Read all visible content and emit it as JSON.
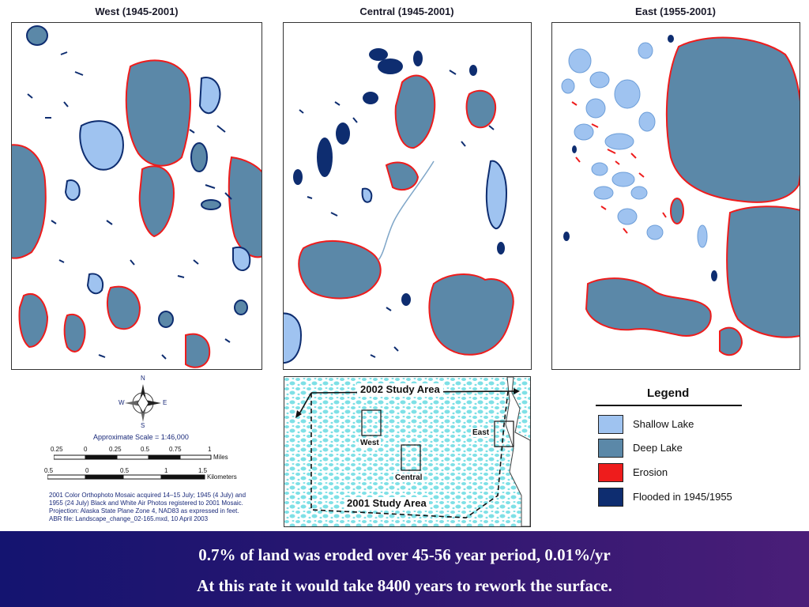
{
  "panels": {
    "west": {
      "title": "West (1945-2001)"
    },
    "central": {
      "title": "Central (1945-2001)"
    },
    "east": {
      "title": "East (1955-2001)"
    }
  },
  "compass": {
    "n": "N",
    "s": "S",
    "e": "E",
    "w": "W"
  },
  "scale": {
    "approx": "Approximate Scale = 1:46,000",
    "miles_ticks": [
      "0.25",
      "0",
      "0.25",
      "0.5",
      "0.75",
      "1"
    ],
    "miles_unit": "Miles",
    "km_ticks": [
      "0.5",
      "0",
      "0.5",
      "1",
      "1.5"
    ],
    "km_unit": "Kilometers"
  },
  "notes": {
    "line1": "2001 Color Orthophoto Mosaic acquired 14–15 July; 1945 (4 July) and",
    "line2": "1955 (24 July) Black and White Air Photos registered to 2001 Mosaic.",
    "line3": "Projection: Alaska State Plane Zone 4, NAD83 as expressed in feet.",
    "line4": "ABR file: Landscape_change_02-165.mxd, 10 April 2003"
  },
  "inset": {
    "study_2002": "2002 Study Area",
    "study_2001": "2001 Study Area",
    "west": "West",
    "central": "Central",
    "east": "East"
  },
  "legend": {
    "title": "Legend",
    "items": [
      {
        "label": "Shallow Lake",
        "color": "#9fc3f0"
      },
      {
        "label": "Deep Lake",
        "color": "#5b88a8"
      },
      {
        "label": "Erosion",
        "color": "#ee1c1c"
      },
      {
        "label": "Flooded in 1945/1955",
        "color": "#0e2d70"
      }
    ]
  },
  "caption": {
    "line1": "0.7% of land was eroded over 45-56 year period, 0.01%/yr",
    "line2": "At this rate it would take 8400 years to rework the surface."
  }
}
